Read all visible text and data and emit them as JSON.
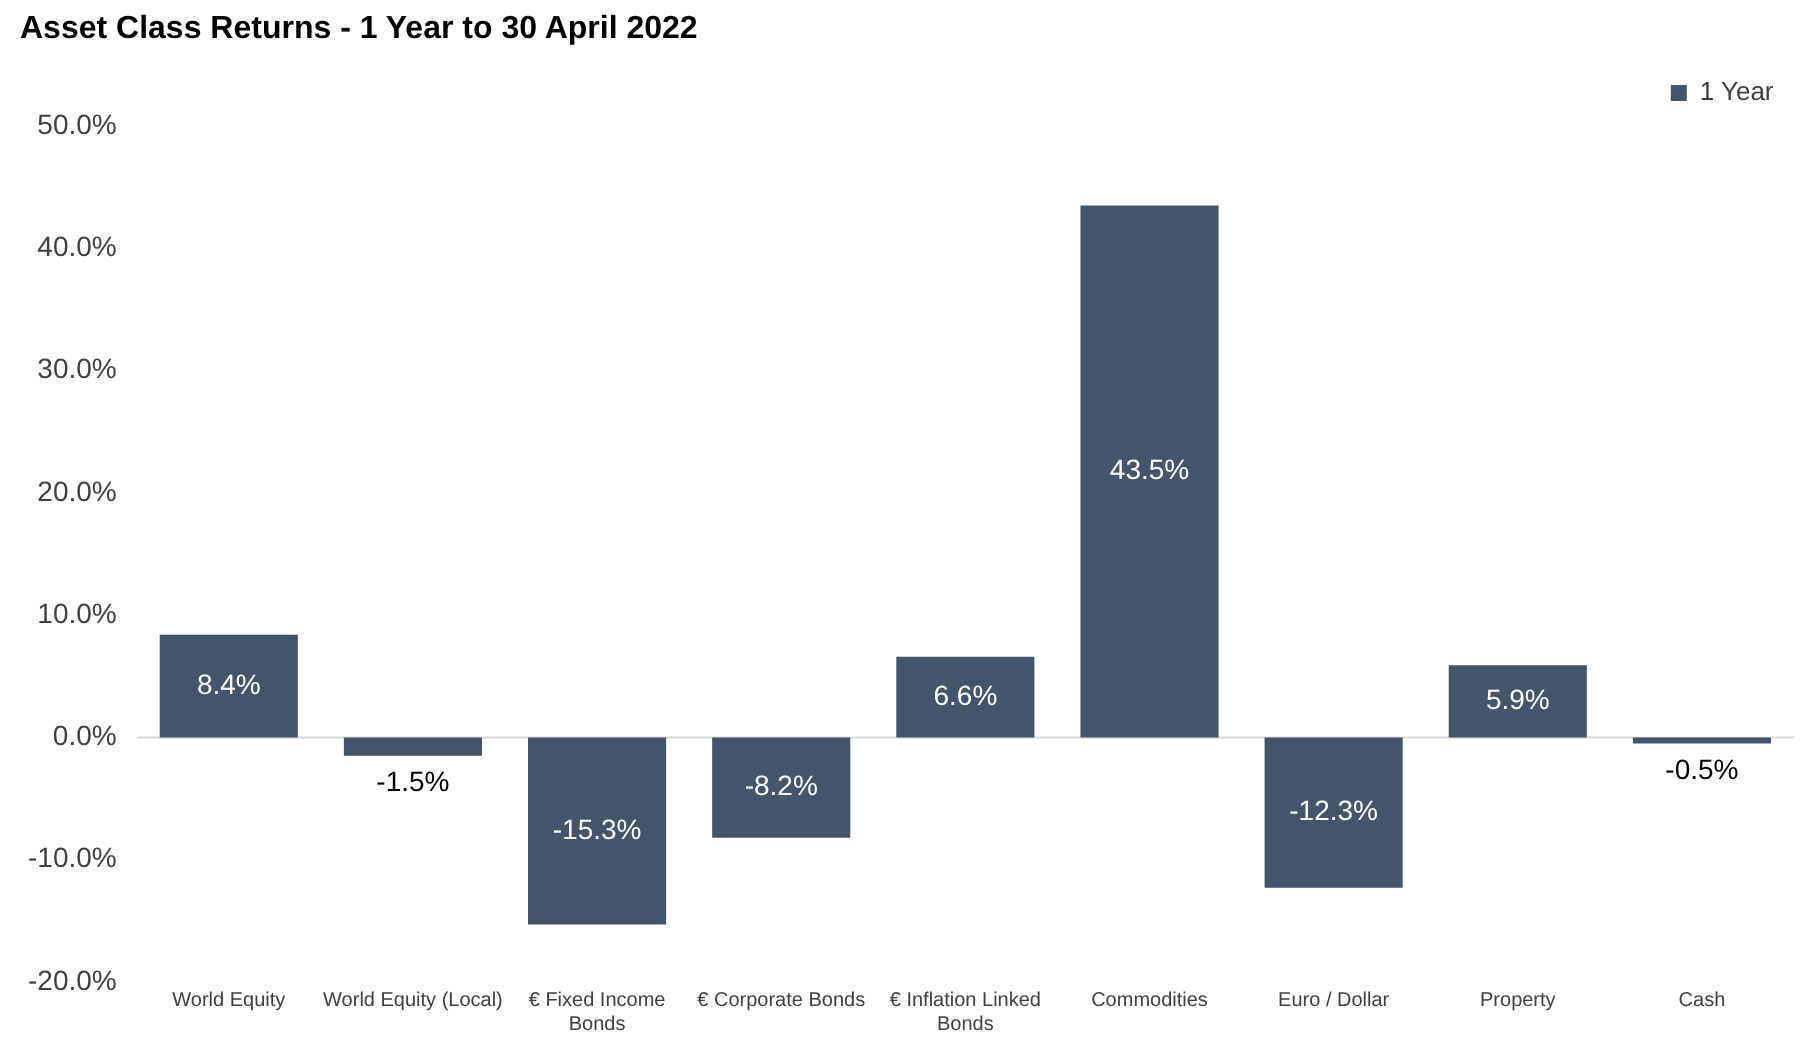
{
  "chart_data": {
    "type": "bar",
    "title": "Asset Class Returns - 1 Year to 30 April 2022",
    "categories": [
      "World Equity",
      "World Equity (Local)",
      "€ Fixed Income Bonds",
      "€ Corporate Bonds",
      "€ Inflation Linked Bonds",
      "Commodities",
      "Euro / Dollar",
      "Property",
      "Cash"
    ],
    "series": [
      {
        "name": "1 Year",
        "color": "#44546a",
        "values": [
          8.4,
          -1.5,
          -15.3,
          -8.2,
          6.6,
          43.5,
          -12.3,
          5.9,
          -0.5
        ],
        "value_labels": [
          "8.4%",
          "-1.5%",
          "-15.3%",
          "-8.2%",
          "6.6%",
          "43.5%",
          "-12.3%",
          "5.9%",
          "-0.5%"
        ]
      }
    ],
    "ylim": [
      -20,
      50
    ],
    "yticks": [
      {
        "value": -20,
        "label": "-20.0%"
      },
      {
        "value": -10,
        "label": "-10.0%"
      },
      {
        "value": 0,
        "label": "0.0%"
      },
      {
        "value": 10,
        "label": "10.0%"
      },
      {
        "value": 20,
        "label": "20.0%"
      },
      {
        "value": 30,
        "label": "30.0%"
      },
      {
        "value": 40,
        "label": "40.0%"
      },
      {
        "value": 50,
        "label": "50.0%"
      }
    ],
    "ref_lines": [
      {
        "axis": "y",
        "value": 0,
        "color": "#d9d9d9"
      }
    ],
    "grid": false,
    "legend": "top right"
  }
}
